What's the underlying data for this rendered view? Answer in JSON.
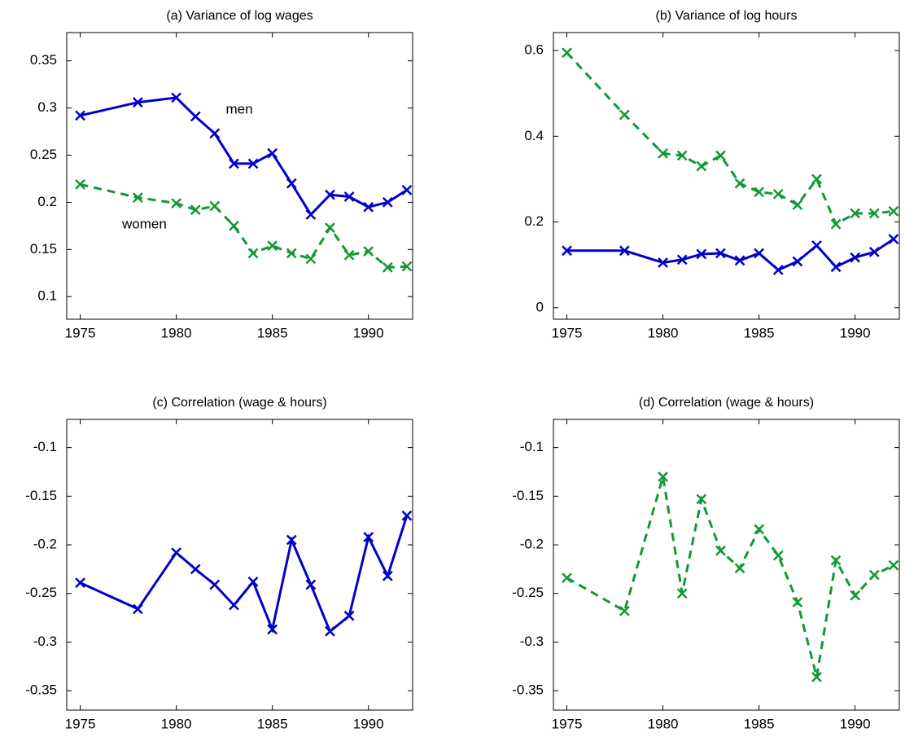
{
  "chart_data": [
    {
      "type": "line",
      "title": "(a) Variance of log wages",
      "x": [
        1975,
        1978,
        1980,
        1981,
        1982,
        1983,
        1984,
        1985,
        1986,
        1987,
        1988,
        1989,
        1990,
        1991,
        1992
      ],
      "series": [
        {
          "color": "#0000c8",
          "linestyle": "solid",
          "marker": "x",
          "values": [
            0.292,
            0.306,
            0.311,
            0.291,
            0.273,
            0.241,
            0.241,
            0.252,
            0.22,
            0.187,
            0.208,
            0.206,
            0.195,
            0.2,
            0.213
          ]
        },
        {
          "color": "#119933",
          "linestyle": "dashed",
          "marker": "x",
          "values": [
            0.219,
            0.205,
            0.199,
            0.192,
            0.196,
            0.175,
            0.146,
            0.154,
            0.146,
            0.14,
            0.173,
            0.144,
            0.148,
            0.131,
            0.132
          ]
        }
      ],
      "annotations": [
        "men",
        "women"
      ],
      "xlim": [
        1974.3,
        1992.3
      ],
      "xticks": [
        1975,
        1980,
        1985,
        1990
      ],
      "ylim": [
        0.076,
        0.38
      ],
      "yticks": [
        0.1,
        0.15,
        0.2,
        0.25,
        0.3,
        0.35
      ]
    },
    {
      "type": "line",
      "title": "(b) Variance of log hours",
      "x": [
        1975,
        1978,
        1980,
        1981,
        1982,
        1983,
        1984,
        1985,
        1986,
        1987,
        1988,
        1989,
        1990,
        1991,
        1992
      ],
      "series": [
        {
          "color": "#119933",
          "linestyle": "dashed",
          "marker": "x",
          "values": [
            0.595,
            0.45,
            0.36,
            0.355,
            0.33,
            0.355,
            0.29,
            0.27,
            0.265,
            0.24,
            0.3,
            0.195,
            0.22,
            0.22,
            0.225
          ]
        },
        {
          "color": "#0000c8",
          "linestyle": "solid",
          "marker": "x",
          "values": [
            0.133,
            0.133,
            0.105,
            0.112,
            0.125,
            0.127,
            0.11,
            0.127,
            0.088,
            0.108,
            0.145,
            0.095,
            0.117,
            0.13,
            0.16
          ]
        }
      ],
      "xlim": [
        1974.3,
        1992.3
      ],
      "xticks": [
        1975,
        1980,
        1985,
        1990
      ],
      "ylim": [
        -0.027,
        0.642
      ],
      "yticks": [
        0,
        0.2,
        0.4,
        0.6
      ]
    },
    {
      "type": "line",
      "title": "(c) Correlation (wage & hours)",
      "x": [
        1975,
        1978,
        1980,
        1981,
        1982,
        1983,
        1984,
        1985,
        1986,
        1987,
        1988,
        1989,
        1990,
        1991,
        1992
      ],
      "series": [
        {
          "color": "#0000c8",
          "linestyle": "solid",
          "marker": "x",
          "values": [
            -0.239,
            -0.266,
            -0.208,
            -0.225,
            -0.241,
            -0.262,
            -0.238,
            -0.287,
            -0.195,
            -0.241,
            -0.289,
            -0.273,
            -0.192,
            -0.232,
            -0.17
          ]
        }
      ],
      "xlim": [
        1974.3,
        1992.3
      ],
      "xticks": [
        1975,
        1980,
        1985,
        1990
      ],
      "ylim": [
        -0.37,
        -0.071
      ],
      "yticks": [
        -0.35,
        -0.3,
        -0.25,
        -0.2,
        -0.15,
        -0.1
      ]
    },
    {
      "type": "line",
      "title": "(d) Correlation (wage & hours)",
      "x": [
        1975,
        1978,
        1980,
        1981,
        1982,
        1983,
        1984,
        1985,
        1986,
        1987,
        1988,
        1989,
        1990,
        1991,
        1992
      ],
      "series": [
        {
          "color": "#119933",
          "linestyle": "dashed",
          "marker": "x",
          "values": [
            -0.234,
            -0.268,
            -0.13,
            -0.25,
            -0.153,
            -0.206,
            -0.224,
            -0.184,
            -0.211,
            -0.259,
            -0.336,
            -0.216,
            -0.252,
            -0.231,
            -0.221
          ]
        }
      ],
      "xlim": [
        1974.3,
        1992.3
      ],
      "xticks": [
        1975,
        1980,
        1985,
        1990
      ],
      "ylim": [
        -0.37,
        -0.071
      ],
      "yticks": [
        -0.35,
        -0.3,
        -0.25,
        -0.2,
        -0.15,
        -0.1
      ]
    }
  ]
}
